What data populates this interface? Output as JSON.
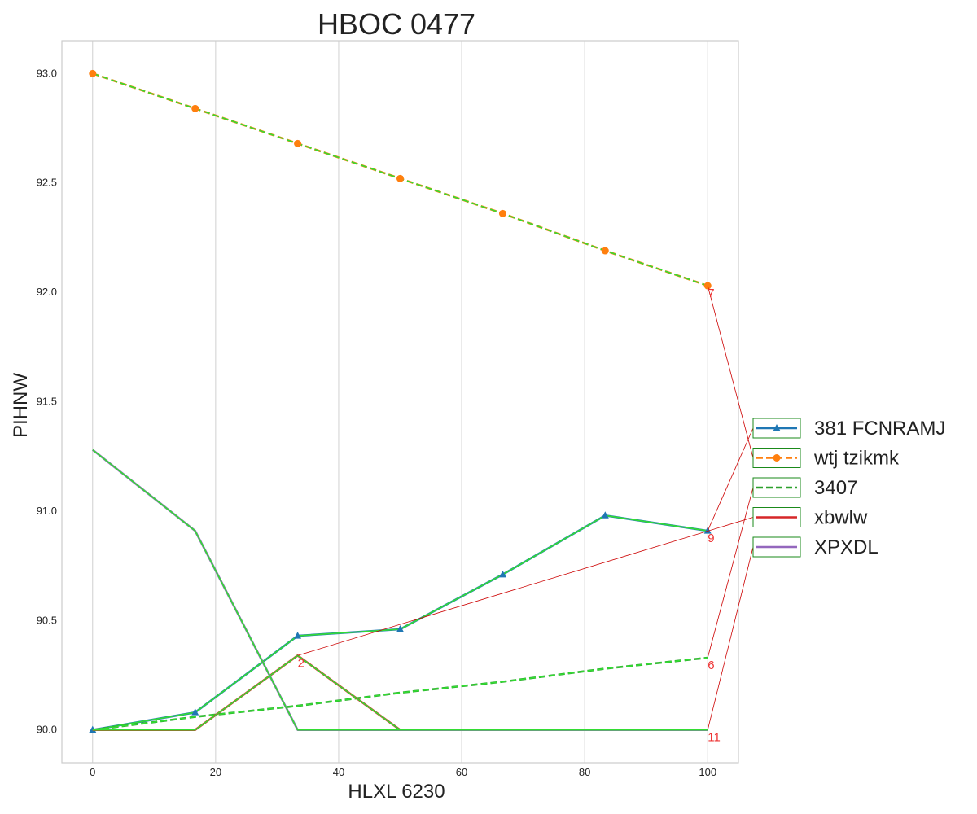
{
  "chart_data": {
    "type": "line",
    "title": "HBOC 0477",
    "xlabel": "HLXL 6230",
    "ylabel": "PIHNW",
    "xlim": [
      -5,
      105
    ],
    "ylim": [
      89.85,
      93.15
    ],
    "x_ticks": [
      0,
      20,
      40,
      60,
      80,
      100
    ],
    "x_tick_labels": [
      "0",
      "20",
      "40",
      "60",
      "80",
      "100"
    ],
    "y_ticks": [
      90.0,
      90.5,
      91.0,
      91.5,
      92.0,
      92.5,
      93.0
    ],
    "y_tick_labels": [
      "90.0",
      "90.5",
      "91.0",
      "91.5",
      "92.0",
      "92.5",
      "93.0"
    ],
    "grid": "vertical",
    "legend_position": "right",
    "x": [
      0,
      16.67,
      33.33,
      50,
      66.67,
      83.33,
      100
    ],
    "series": [
      {
        "name": "381 FCNRAMJ",
        "color": "#1f77b4",
        "style": "solid",
        "marker": "triangle",
        "values": [
          90.0,
          90.08,
          90.43,
          90.46,
          90.71,
          90.98,
          90.91
        ]
      },
      {
        "name": "wtj tzikmk",
        "color": "#ff7f0e",
        "style": "dashed",
        "marker": "circle",
        "values": [
          93.0,
          92.84,
          92.68,
          92.52,
          92.36,
          92.19,
          92.03
        ]
      },
      {
        "name": "3407",
        "color": "#2ca02c",
        "style": "dashed",
        "marker": "none",
        "values": [
          90.0,
          90.06,
          90.11,
          90.17,
          90.22,
          90.28,
          90.33
        ]
      },
      {
        "name": "xbwlw",
        "color": "#d62728",
        "style": "solid",
        "marker": "none",
        "values": [
          90.0,
          90.0,
          90.34,
          90.0,
          90.0,
          90.0,
          90.0
        ]
      },
      {
        "name": "XPXDL",
        "color": "#9467bd",
        "style": "solid",
        "marker": "none",
        "values": [
          91.28,
          90.91,
          90.0,
          90.0,
          90.0,
          90.0,
          90.0
        ]
      }
    ],
    "highlight_color": "#33dd33",
    "annotation_color": "#ee3333",
    "annotations": [
      {
        "text": "7",
        "x": 100,
        "y": 92.03,
        "series": "wtj tzikmk"
      },
      {
        "text": "9",
        "x": 100,
        "y": 90.91,
        "series": "381 FCNRAMJ"
      },
      {
        "text": "2",
        "x": 33.33,
        "y": 90.34,
        "series": "xbwlw"
      },
      {
        "text": "6",
        "x": 100,
        "y": 90.33,
        "series": "3407"
      },
      {
        "text": "11",
        "x": 100,
        "y": 90.0,
        "series": "XPXDL"
      }
    ]
  }
}
